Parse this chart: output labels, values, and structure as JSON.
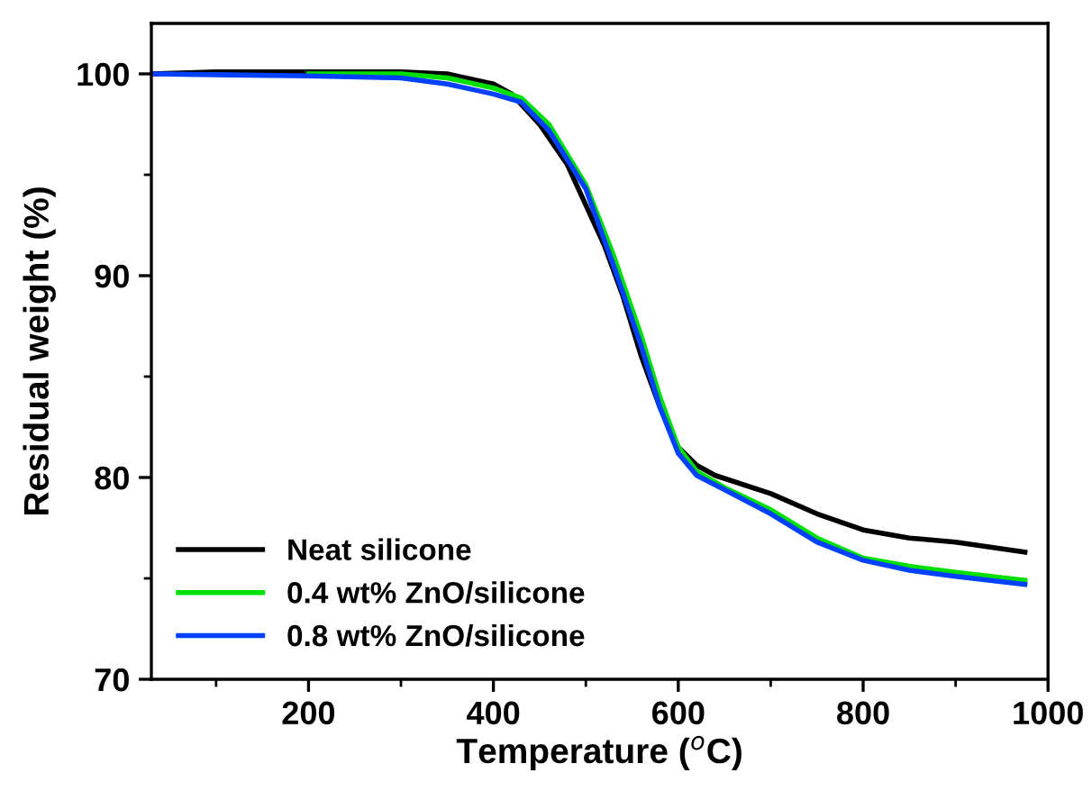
{
  "chart_data": {
    "type": "line",
    "xlabel": "Temperature ($^{o}$C)",
    "ylabel": "Residual weight (%)",
    "xlim": [
      30,
      1000
    ],
    "xticks": [
      200,
      400,
      600,
      800,
      1000
    ],
    "ylim": [
      70,
      102.5
    ],
    "yticks": [
      70,
      80,
      90,
      100
    ],
    "grid": false,
    "legend": "bottom left",
    "line_style": "solid",
    "marker": "none",
    "series": [
      {
        "name": "Neat silicone",
        "color": "#000000",
        "x": [
          30,
          100,
          200,
          300,
          350,
          400,
          420,
          450,
          480,
          500,
          520,
          540,
          560,
          580,
          600,
          620,
          640,
          700,
          750,
          800,
          850,
          900,
          975
        ],
        "values": [
          100.0,
          100.1,
          100.1,
          100.1,
          100.0,
          99.5,
          99.0,
          97.5,
          95.5,
          93.5,
          91.5,
          89.0,
          86.0,
          83.5,
          81.5,
          80.6,
          80.1,
          79.2,
          78.2,
          77.4,
          77.0,
          76.8,
          76.3
        ]
      },
      {
        "name": "0.4 wt% ZnO/silicone",
        "color": "#00e000",
        "x": [
          200,
          300,
          350,
          400,
          430,
          460,
          500,
          530,
          560,
          580,
          600,
          620,
          650,
          700,
          750,
          800,
          850,
          900,
          975
        ],
        "values": [
          100.0,
          100.0,
          99.8,
          99.3,
          98.8,
          97.5,
          94.5,
          91.0,
          87.0,
          84.0,
          81.5,
          80.3,
          79.5,
          78.4,
          77.0,
          76.0,
          75.6,
          75.3,
          74.9
        ]
      },
      {
        "name": "0.8 wt% ZnO/silicone",
        "color": "#0040ff",
        "x": [
          30,
          200,
          300,
          350,
          400,
          430,
          460,
          500,
          530,
          560,
          580,
          600,
          620,
          650,
          700,
          750,
          800,
          850,
          900,
          975
        ],
        "values": [
          100.0,
          99.9,
          99.8,
          99.5,
          99.0,
          98.6,
          97.2,
          94.3,
          90.5,
          86.5,
          83.5,
          81.2,
          80.1,
          79.4,
          78.2,
          76.8,
          75.9,
          75.4,
          75.1,
          74.7
        ]
      }
    ]
  }
}
